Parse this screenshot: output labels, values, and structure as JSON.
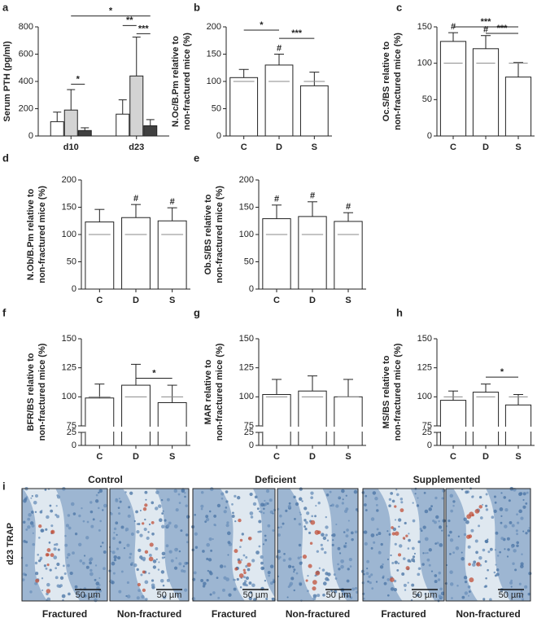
{
  "chart_data": [
    {
      "type": "bar",
      "label": "a",
      "ylabel": [
        "Serum PTH (pg/ml)"
      ],
      "categories": [
        "d10",
        "d23"
      ],
      "series": [
        {
          "color": "#ffffff",
          "values": [
            105,
            160
          ],
          "errors": [
            70,
            105
          ]
        },
        {
          "color": "#d3d3d3",
          "values": [
            190,
            440
          ],
          "errors": [
            150,
            285
          ]
        },
        {
          "color": "#404040",
          "values": [
            40,
            75
          ],
          "errors": [
            20,
            45
          ]
        }
      ],
      "ylim": [
        0,
        800
      ],
      "yticks": [
        0,
        200,
        400,
        600,
        800
      ],
      "annotations": [
        "*",
        "**",
        "***",
        "*"
      ]
    },
    {
      "type": "bar",
      "label": "b",
      "ylabel": [
        "N.Oc/B.Pm relative to",
        "non-fractured mice (%)"
      ],
      "categories": [
        "C",
        "D",
        "S"
      ],
      "values": [
        107,
        130,
        92
      ],
      "errors": [
        15,
        20,
        25
      ],
      "color": "#ffffff",
      "reference": 100,
      "ylim": [
        0,
        200
      ],
      "yticks": [
        0,
        50,
        100,
        150,
        200
      ],
      "annotations": [
        "*",
        "#",
        "***"
      ]
    },
    {
      "type": "bar",
      "label": "c",
      "ylabel": [
        "Oc.S/BS relative to",
        "non-fractured mice (%)"
      ],
      "categories": [
        "C",
        "D",
        "S"
      ],
      "values": [
        130,
        120,
        81
      ],
      "errors": [
        12,
        18,
        20
      ],
      "color": "#ffffff",
      "reference": 100,
      "ylim": [
        0,
        150
      ],
      "yticks": [
        0,
        50,
        100,
        150
      ],
      "annotations": [
        "#",
        "#",
        "***",
        "***"
      ]
    },
    {
      "type": "bar",
      "label": "d",
      "ylabel": [
        "N.Ob/B.Pm relative to",
        "non-fractured mice (%)"
      ],
      "categories": [
        "C",
        "D",
        "S"
      ],
      "values": [
        123,
        131,
        125
      ],
      "errors": [
        23,
        24,
        24
      ],
      "color": "#ffffff",
      "reference": 100,
      "ylim": [
        0,
        200
      ],
      "yticks": [
        0,
        50,
        100,
        150,
        200
      ],
      "annotations": [
        "#",
        "#"
      ]
    },
    {
      "type": "bar",
      "label": "e",
      "ylabel": [
        "Ob.S/BS relative to",
        "non-fractured mice (%)"
      ],
      "categories": [
        "C",
        "D",
        "S"
      ],
      "values": [
        129,
        133,
        124
      ],
      "errors": [
        25,
        27,
        16
      ],
      "color": "#ffffff",
      "reference": 100,
      "ylim": [
        0,
        200
      ],
      "yticks": [
        0,
        50,
        100,
        150,
        200
      ],
      "annotations": [
        "#",
        "#",
        "#"
      ]
    },
    {
      "type": "bar",
      "label": "f",
      "ylabel": [
        "BFR/BS relative to",
        "non-fractured mice (%)"
      ],
      "categories": [
        "C",
        "D",
        "S"
      ],
      "values": [
        99,
        110,
        95
      ],
      "errors": [
        12,
        18,
        15
      ],
      "color": "#ffffff",
      "reference": 100,
      "ylim": [
        0,
        150
      ],
      "ybreak": [
        25,
        75
      ],
      "yticks": [
        0,
        25,
        75,
        100,
        125,
        150
      ],
      "annotations": [
        "*"
      ]
    },
    {
      "type": "bar",
      "label": "g",
      "ylabel": [
        "MAR relative to",
        "non-fractured mice (%)"
      ],
      "categories": [
        "C",
        "D",
        "S"
      ],
      "values": [
        102,
        105,
        100
      ],
      "errors": [
        13,
        13,
        15
      ],
      "color": "#ffffff",
      "reference": 100,
      "ylim": [
        0,
        150
      ],
      "ybreak": [
        25,
        75
      ],
      "yticks": [
        0,
        25,
        75,
        100,
        125,
        150
      ],
      "annotations": []
    },
    {
      "type": "bar",
      "label": "h",
      "ylabel": [
        "MS/BS relative to",
        "non-fractured mice (%)"
      ],
      "categories": [
        "C",
        "D",
        "S"
      ],
      "values": [
        97,
        104,
        93
      ],
      "errors": [
        8,
        7,
        9
      ],
      "color": "#ffffff",
      "reference": 100,
      "ylim": [
        0,
        150
      ],
      "ybreak": [
        25,
        75
      ],
      "yticks": [
        0,
        25,
        75,
        100,
        125,
        150
      ],
      "annotations": [
        "*"
      ]
    }
  ],
  "micrographs": {
    "label": "i",
    "row_label": "d23 TRAP",
    "groups": [
      "Control",
      "Deficient",
      "Supplemented"
    ],
    "columns": [
      "Fractured",
      "Non-fractured",
      "Fractured",
      "Non-fractured",
      "Fractured",
      "Non-fractured"
    ],
    "scale_bar": "50 µm"
  }
}
